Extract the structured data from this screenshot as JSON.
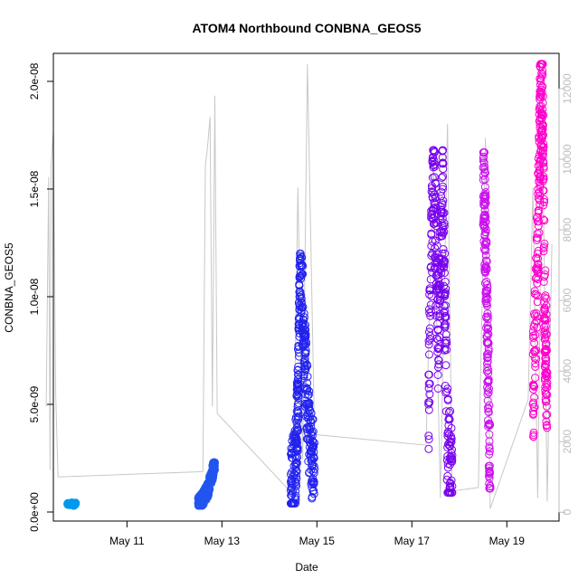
{
  "chart_data": {
    "type": "scatter",
    "title": "ATOM4 Northbound CONBNA_GEOS5",
    "xlabel": "Date",
    "ylabel": "CONBNA_GEOS5",
    "x_ticks": [
      "May 11",
      "May 13",
      "May 15",
      "May 17",
      "May 19"
    ],
    "x_tick_days": [
      11,
      13,
      15,
      17,
      19
    ],
    "xlim_days": [
      9.45,
      20.1
    ],
    "ylim": [
      -4.2e-10,
      2.13e-08
    ],
    "y_ticks": [
      0,
      5e-09,
      1e-08,
      1.5e-08,
      2e-08
    ],
    "y_tick_labels": [
      "0.0e+00",
      "5.0e-09",
      "1.0e-08",
      "1.5e-08",
      "2.0e-08"
    ],
    "y2lim": [
      -250,
      13000
    ],
    "y2_ticks": [
      0,
      2000,
      4000,
      6000,
      8000,
      10000,
      12000
    ],
    "y2_tick_labels": [
      "0",
      "2000",
      "4000",
      "6000",
      "8000",
      "10000",
      "12000"
    ],
    "grid": false,
    "altitude_color": "#c8c8c8",
    "series": [
      {
        "color": "#0099ee",
        "day_range": [
          9.75,
          9.92
        ],
        "y_range": [
          3e-10,
          5e-10
        ],
        "points": [
          [
            9.75,
            3.8e-10
          ],
          [
            9.8,
            3.5e-10
          ],
          [
            9.84,
            4.2e-10
          ],
          [
            9.88,
            3.2e-10
          ],
          [
            9.92,
            4e-10
          ]
        ]
      },
      {
        "color": "#2255ee",
        "day_range": [
          12.5,
          12.85
        ],
        "y_range": [
          3e-10,
          2.3e-09
        ],
        "points": [
          [
            12.5,
            4e-10
          ],
          [
            12.6,
            6e-10
          ],
          [
            12.7,
            1e-09
          ],
          [
            12.8,
            1.8e-09
          ],
          [
            12.85,
            2.3e-09
          ]
        ]
      },
      {
        "color": "#2222ee",
        "day_range": [
          14.45,
          14.95
        ],
        "y_range": [
          4e-10,
          1.2e-08
        ],
        "points": [
          [
            14.45,
            1e-09
          ],
          [
            14.55,
            2.2e-09
          ],
          [
            14.6,
            5e-09
          ],
          [
            14.65,
            1.19e-08
          ],
          [
            14.75,
            7e-09
          ],
          [
            14.85,
            3e-09
          ],
          [
            14.95,
            2e-09
          ]
        ]
      },
      {
        "color": "#7700ee",
        "day_range": [
          17.35,
          17.85
        ],
        "y_range": [
          9e-10,
          1.68e-08
        ],
        "points": [
          [
            17.35,
            5e-09
          ],
          [
            17.45,
            1.68e-08
          ],
          [
            17.55,
            8e-09
          ],
          [
            17.65,
            1.5e-08
          ],
          [
            17.75,
            3e-09
          ],
          [
            17.85,
            1.2e-09
          ]
        ]
      },
      {
        "color": "#cc11ee",
        "day_range": [
          18.5,
          18.65
        ],
        "y_range": [
          1.1e-09,
          1.67e-08
        ],
        "points": [
          [
            18.5,
            1.6e-08
          ],
          [
            18.55,
            1.3e-08
          ],
          [
            18.6,
            7e-09
          ],
          [
            18.65,
            1.2e-09
          ]
        ]
      },
      {
        "color": "#ff00cc",
        "day_range": [
          19.55,
          19.85
        ],
        "y_range": [
          3.5e-09,
          2.08e-08
        ],
        "points": [
          [
            19.55,
            5e-09
          ],
          [
            19.65,
            1.2e-08
          ],
          [
            19.7,
            1.8e-08
          ],
          [
            19.75,
            2.05e-08
          ],
          [
            19.8,
            9e-09
          ],
          [
            19.85,
            6e-09
          ]
        ]
      }
    ],
    "altitude_trace": [
      [
        9.3,
        3000
      ],
      [
        9.35,
        9500
      ],
      [
        9.38,
        1200
      ],
      [
        9.4,
        9800
      ],
      [
        9.45,
        10800
      ],
      [
        9.5,
        3300
      ],
      [
        9.55,
        1000
      ],
      [
        12.6,
        1150
      ],
      [
        12.65,
        9800
      ],
      [
        12.7,
        10400
      ],
      [
        12.75,
        11200
      ],
      [
        12.8,
        3000
      ],
      [
        12.85,
        11800
      ],
      [
        12.9,
        2800
      ],
      [
        14.5,
        500
      ],
      [
        14.6,
        9200
      ],
      [
        14.7,
        1500
      ],
      [
        14.8,
        12700
      ],
      [
        14.95,
        2200
      ],
      [
        17.3,
        1900
      ],
      [
        17.45,
        10000
      ],
      [
        17.6,
        400
      ],
      [
        17.75,
        11000
      ],
      [
        17.85,
        600
      ],
      [
        18.4,
        700
      ],
      [
        18.55,
        10600
      ],
      [
        18.65,
        100
      ],
      [
        19.45,
        3200
      ],
      [
        19.55,
        9200
      ],
      [
        19.65,
        400
      ],
      [
        19.75,
        11200
      ],
      [
        19.85,
        300
      ],
      [
        19.95,
        7600
      ]
    ]
  }
}
